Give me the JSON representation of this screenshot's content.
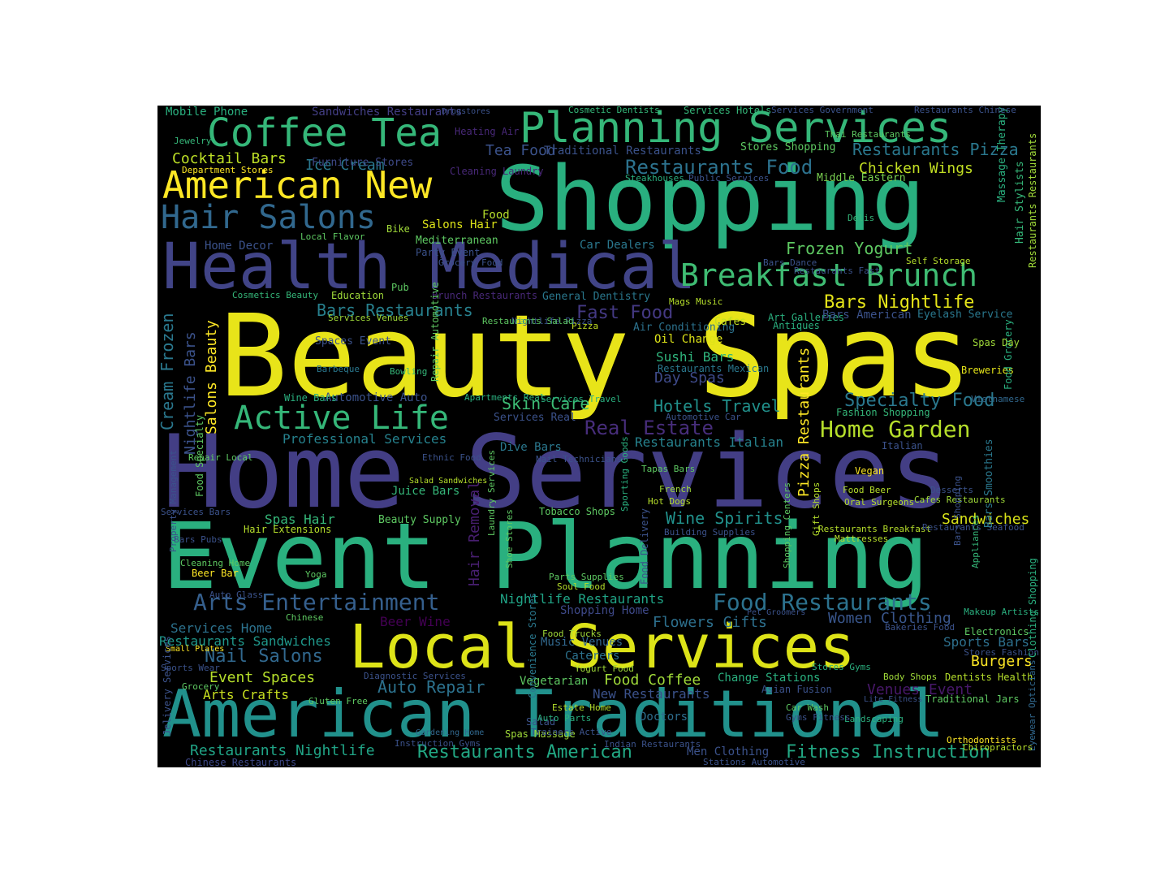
{
  "figure": {
    "background": "#ffffff",
    "panel_background": "#000000",
    "colormap": "viridis"
  },
  "words": [
    {
      "text": "Beauty Spas",
      "color": "#e8e419"
    },
    {
      "text": "Home Services",
      "color": "#433e85"
    },
    {
      "text": "Event Planning",
      "color": "#2ab07f"
    },
    {
      "text": "Shopping",
      "color": "#29af7f"
    },
    {
      "text": "American Traditional",
      "color": "#21918c"
    },
    {
      "text": "Local Services",
      "color": "#dde318"
    },
    {
      "text": "Health Medical",
      "color": "#414487"
    },
    {
      "text": "Planning Services",
      "color": "#35b779"
    },
    {
      "text": "Coffee Tea",
      "color": "#35b779"
    },
    {
      "text": "American New",
      "color": "#fde725"
    },
    {
      "text": "Breakfast Brunch",
      "color": "#3fbc73"
    },
    {
      "text": "Hair Salons",
      "color": "#31688e"
    },
    {
      "text": "Active Life",
      "color": "#35b779"
    },
    {
      "text": "Arts Entertainment",
      "color": "#355f8d"
    },
    {
      "text": "Food Restaurants",
      "color": "#2c728e"
    },
    {
      "text": "Home Garden",
      "color": "#b5de2b"
    },
    {
      "text": "Specialty Food",
      "color": "#2a788e"
    },
    {
      "text": "Real Estate",
      "color": "#472d7b"
    },
    {
      "text": "Restaurants Pizza",
      "color": "#2a788e"
    },
    {
      "text": "Restaurants Food",
      "color": "#2c728e"
    },
    {
      "text": "Fitness Instruction",
      "color": "#22a884"
    },
    {
      "text": "Restaurants American",
      "color": "#22a884"
    },
    {
      "text": "Restaurants Nightlife",
      "color": "#20a486"
    },
    {
      "text": "Bars Nightlife",
      "color": "#e5e419"
    },
    {
      "text": "Bars Restaurants",
      "color": "#27808e"
    },
    {
      "text": "Fast Food",
      "color": "#443983"
    },
    {
      "text": "Hotels Travel",
      "color": "#21918c"
    },
    {
      "text": "Auto Repair",
      "color": "#2c728e"
    },
    {
      "text": "Nail Salons",
      "color": "#31688e"
    },
    {
      "text": "Frozen Yogurt",
      "color": "#5ec962"
    },
    {
      "text": "Chicken Wings",
      "color": "#c2df23"
    },
    {
      "text": "Professional Services",
      "color": "#26828e"
    },
    {
      "text": "Wine Spirits",
      "color": "#21918c"
    },
    {
      "text": "Flowers Gifts",
      "color": "#2d708e"
    },
    {
      "text": "Women Clothing",
      "color": "#39568c"
    },
    {
      "text": "Sandwiches",
      "color": "#d8e219"
    },
    {
      "text": "Skin Care",
      "color": "#3dbc74"
    },
    {
      "text": "Day Spas",
      "color": "#3e4a89"
    },
    {
      "text": "Sushi Bars",
      "color": "#2fb47c"
    },
    {
      "text": "Event Spaces",
      "color": "#b5de2b"
    },
    {
      "text": "Burgers",
      "color": "#fde725"
    },
    {
      "text": "Sports Bars",
      "color": "#2d708e"
    },
    {
      "text": "Cocktail Bars",
      "color": "#bddf26"
    },
    {
      "text": "Ice Cream",
      "color": "#2a788e"
    },
    {
      "text": "Tea Food",
      "color": "#3b528b"
    },
    {
      "text": "Restaurants Italian",
      "color": "#26828e"
    },
    {
      "text": "Food Coffee",
      "color": "#a0da39"
    },
    {
      "text": "Salons Hair",
      "color": "#dde318"
    },
    {
      "text": "Home Decor",
      "color": "#3b528b"
    },
    {
      "text": "Car Dealers",
      "color": "#2a788e"
    },
    {
      "text": "Mobile Phone",
      "color": "#2ab07f"
    },
    {
      "text": "Sandwiches Restaurants",
      "color": "#433e85"
    },
    {
      "text": "Services Home",
      "color": "#2c728e"
    },
    {
      "text": "Restaurants Sandwiches",
      "color": "#1f988b"
    },
    {
      "text": "Arts Crafts",
      "color": "#c8e020"
    },
    {
      "text": "New Restaurants",
      "color": "#3b528b"
    },
    {
      "text": "Doctors",
      "color": "#2e6e8e"
    },
    {
      "text": "Beer Wine",
      "color": "#440154"
    },
    {
      "text": "Nightlife Restaurants",
      "color": "#20a486"
    },
    {
      "text": "Shopping Home",
      "color": "#3e4989"
    },
    {
      "text": "Music Venues",
      "color": "#31688e"
    },
    {
      "text": "Oil Change",
      "color": "#dde318"
    },
    {
      "text": "Venues Event",
      "color": "#48186a"
    },
    {
      "text": "Change Stations",
      "color": "#2ab07f"
    },
    {
      "text": "Men Clothing",
      "color": "#3b528b"
    },
    {
      "text": "Salons Beauty",
      "color": "#fde725"
    },
    {
      "text": "Nightlife Bars",
      "color": "#3b528b"
    },
    {
      "text": "Cream Frozen",
      "color": "#2a788e"
    },
    {
      "text": "Hair Removal",
      "color": "#481f70"
    },
    {
      "text": "Pizza Restaurants",
      "color": "#fde725"
    },
    {
      "text": "Restaurants Mexican",
      "color": "#2a788e"
    },
    {
      "text": "Breweries",
      "color": "#e5e419"
    },
    {
      "text": "Services Hotels",
      "color": "#35b779"
    },
    {
      "text": "Cosmetic Dentists",
      "color": "#35b779"
    },
    {
      "text": "Traditional Restaurants",
      "color": "#3b528b"
    },
    {
      "text": "Stores Shopping",
      "color": "#5ec962"
    },
    {
      "text": "Furniture Stores",
      "color": "#3e4a89"
    },
    {
      "text": "Dive Bars",
      "color": "#2a788e"
    },
    {
      "text": "Juice Bars",
      "color": "#35b779"
    },
    {
      "text": "Beauty Supply",
      "color": "#5ec962"
    },
    {
      "text": "Spas Hair",
      "color": "#35b779"
    },
    {
      "text": "Automotive Auto",
      "color": "#3b528b"
    },
    {
      "text": "Air Conditioning",
      "color": "#2c728e"
    },
    {
      "text": "Middle Eastern",
      "color": "#7ad151"
    },
    {
      "text": "Mediterranean",
      "color": "#5ec962"
    },
    {
      "text": "General Dentistry",
      "color": "#2a788e"
    },
    {
      "text": "Brunch Restaurants",
      "color": "#482878"
    },
    {
      "text": "Electronics",
      "color": "#5ec962"
    },
    {
      "text": "Massage Therapy",
      "color": "#2ab07f"
    },
    {
      "text": "Restaurants Restaurants",
      "color": "#a0da39"
    },
    {
      "text": "Education",
      "color": "#a0da39"
    },
    {
      "text": "Cafes",
      "color": "#c2df23"
    },
    {
      "text": "Food",
      "color": "#b5de2b"
    },
    {
      "text": "Chinese Restaurants",
      "color": "#3e4989"
    },
    {
      "text": "Caterers",
      "color": "#2c728e"
    },
    {
      "text": "Vegetarian",
      "color": "#5ec962"
    },
    {
      "text": "Cleaning Laundry",
      "color": "#482878"
    },
    {
      "text": "Heating Air",
      "color": "#482878"
    },
    {
      "text": "Restaurants Fast",
      "color": "#3b528b"
    },
    {
      "text": "Art Galleries",
      "color": "#2ab07f"
    },
    {
      "text": "Mags Music",
      "color": "#b5de2b"
    },
    {
      "text": "Eyelash Service",
      "color": "#2a788e"
    },
    {
      "text": "Bars American",
      "color": "#3b528b"
    },
    {
      "text": "Department Stores",
      "color": "#fde725"
    },
    {
      "text": "Jewelry",
      "color": "#35b779"
    },
    {
      "text": "Barbeque",
      "color": "#2a788e"
    },
    {
      "text": "Wine Bars",
      "color": "#2ab07f"
    },
    {
      "text": "Services Government",
      "color": "#3b528b"
    },
    {
      "text": "Restaurants Chinese",
      "color": "#3b528b"
    },
    {
      "text": "Drugstores",
      "color": "#3b528b"
    },
    {
      "text": "Fashion Shopping",
      "color": "#35b779"
    },
    {
      "text": "Vegan",
      "color": "#fde725"
    },
    {
      "text": "Food Beer",
      "color": "#b5de2b"
    },
    {
      "text": "Desserts",
      "color": "#3b528b"
    },
    {
      "text": "Cafes Restaurants",
      "color": "#a0da39"
    },
    {
      "text": "Restaurants Breakfast",
      "color": "#b5de2b"
    },
    {
      "text": "Dentists Health",
      "color": "#b5de2b"
    },
    {
      "text": "Stores Fashion",
      "color": "#3b528b"
    },
    {
      "text": "Asian Fusion",
      "color": "#3b528b"
    },
    {
      "text": "Lite Fitness",
      "color": "#3b528b"
    },
    {
      "text": "Traditional Jars",
      "color": "#5ec962"
    },
    {
      "text": "Body Shops",
      "color": "#a0da39"
    },
    {
      "text": "Vietnamese",
      "color": "#31688e"
    },
    {
      "text": "Beer Bar",
      "color": "#fde725"
    },
    {
      "text": "Chinese",
      "color": "#5ec962"
    },
    {
      "text": "Food Trucks",
      "color": "#a0da39"
    },
    {
      "text": "Shoe Stores",
      "color": "#5ec962"
    },
    {
      "text": "Sporting Goods",
      "color": "#2ab07f"
    },
    {
      "text": "Food Delivery",
      "color": "#3b528b"
    },
    {
      "text": "Gift Shops",
      "color": "#b5de2b"
    },
    {
      "text": "Pizza",
      "color": "#c2df23"
    },
    {
      "text": "Spas Massage",
      "color": "#a0da39"
    },
    {
      "text": "Salad",
      "color": "#3b528b"
    },
    {
      "text": "Auto Parts",
      "color": "#2ab07f"
    },
    {
      "text": "Hot Dogs",
      "color": "#b5de2b"
    },
    {
      "text": "French",
      "color": "#a0da39"
    },
    {
      "text": "Mattresses",
      "color": "#b5de2b"
    },
    {
      "text": "Appliances",
      "color": "#35b779"
    },
    {
      "text": "Gardening Home",
      "color": "#31688e"
    },
    {
      "text": "Pub",
      "color": "#5ec962"
    },
    {
      "text": "Party Event",
      "color": "#3b528b"
    },
    {
      "text": "Antiques",
      "color": "#2ab07f"
    },
    {
      "text": "Bike",
      "color": "#a0da39"
    },
    {
      "text": "Hair Stylists",
      "color": "#35b779"
    },
    {
      "text": "Tobacco Shops",
      "color": "#5ec962"
    },
    {
      "text": "Grocery Food",
      "color": "#3b528b"
    },
    {
      "text": "Local Flavor",
      "color": "#5ec962"
    },
    {
      "text": "Bowling",
      "color": "#35b779"
    },
    {
      "text": "Cosmetics Beauty",
      "color": "#35b779"
    },
    {
      "text": "Steakhouses",
      "color": "#2ab07f"
    },
    {
      "text": "Public Services",
      "color": "#3b528b"
    },
    {
      "text": "Self Storage",
      "color": "#b5de2b"
    },
    {
      "text": "Delis",
      "color": "#35b779"
    },
    {
      "text": "Italian",
      "color": "#3b528b"
    },
    {
      "text": "Food Specialty",
      "color": "#5ec962"
    },
    {
      "text": "Clothing Shopping",
      "color": "#2ab07f"
    },
    {
      "text": "Repair Local",
      "color": "#5ec962"
    },
    {
      "text": "Diagnostic Services",
      "color": "#3b528b"
    },
    {
      "text": "Estate Home",
      "color": "#b5de2b"
    },
    {
      "text": "Yogurt Food",
      "color": "#a0da39"
    },
    {
      "text": "Shopping Centers",
      "color": "#5ec962"
    },
    {
      "text": "Landscaping",
      "color": "#2ab07f"
    },
    {
      "text": "Bakeries Food",
      "color": "#3b528b"
    },
    {
      "text": "Makeup Artists",
      "color": "#2ab07f"
    },
    {
      "text": "Eyewear Opticians",
      "color": "#31688e"
    },
    {
      "text": "Property Management",
      "color": "#3b528b"
    },
    {
      "text": "Nightlife Pizza",
      "color": "#3b528b"
    },
    {
      "text": "Services Real",
      "color": "#3b528b"
    },
    {
      "text": "Services Venues",
      "color": "#a0da39"
    },
    {
      "text": "Spaces Event",
      "color": "#3b528b"
    },
    {
      "text": "Restaurants Salad",
      "color": "#5ec962"
    },
    {
      "text": "Apartments Real",
      "color": "#2ab07f"
    },
    {
      "text": "Repair Automotive",
      "color": "#5ec962"
    },
    {
      "text": "Convenience Stores",
      "color": "#2a788e"
    },
    {
      "text": "Laundry Services",
      "color": "#5ec962"
    },
    {
      "text": "Parts Supplies",
      "color": "#5ec962"
    },
    {
      "text": "Soul Food",
      "color": "#b5de2b"
    },
    {
      "text": "Building Supplies",
      "color": "#3b528b"
    },
    {
      "text": "Automotive Car",
      "color": "#3b528b"
    },
    {
      "text": "Restaurants Seafood",
      "color": "#3b528b"
    },
    {
      "text": "Ethnic Food",
      "color": "#3b528b"
    },
    {
      "text": "Salad Sandwiches",
      "color": "#b5de2b"
    },
    {
      "text": "Tapas Bars",
      "color": "#5ec962"
    },
    {
      "text": "Services Bars",
      "color": "#3b528b"
    },
    {
      "text": "Small Plates",
      "color": "#fde725"
    },
    {
      "text": "Sports Wear",
      "color": "#3b528b"
    },
    {
      "text": "Grocery",
      "color": "#5ec962"
    },
    {
      "text": "Jelivery Services",
      "color": "#3b528b"
    },
    {
      "text": "Auto Glass",
      "color": "#3b528b"
    },
    {
      "text": "Cleaning Home",
      "color": "#5ec962"
    },
    {
      "text": "Bars Pubs",
      "color": "#3b528b"
    },
    {
      "text": "Yoga",
      "color": "#5ec962"
    },
    {
      "text": "Pet Groomers",
      "color": "#3b528b"
    },
    {
      "text": "Hair Extensions",
      "color": "#b5de2b"
    },
    {
      "text": "Stores Gyms",
      "color": "#2ab07f"
    },
    {
      "text": "Gyms Fitness",
      "color": "#3b528b"
    },
    {
      "text": "Bars Shopping",
      "color": "#3b528b"
    },
    {
      "text": "Bars Smoothies",
      "color": "#2a788e"
    },
    {
      "text": "Food Grocery",
      "color": "#2ab07f"
    },
    {
      "text": "Spas Day",
      "color": "#a0da39"
    },
    {
      "text": "Instruction Gyms",
      "color": "#3b528b"
    },
    {
      "text": "Oral Surgeons",
      "color": "#b5de2b"
    },
    {
      "text": "Gluten Free",
      "color": "#5ec962"
    },
    {
      "text": "Bars Dance",
      "color": "#3b528b"
    },
    {
      "text": "Thai Restaurants",
      "color": "#5ec962"
    },
    {
      "text": "Nail Technicians",
      "color": "#3b528b"
    },
    {
      "text": "Chiropractors",
      "color": "#b5de2b"
    },
    {
      "text": "Orthodontists",
      "color": "#fde725"
    },
    {
      "text": "Indian Restaurants",
      "color": "#3b528b"
    },
    {
      "text": "Services Travel",
      "color": "#2ab07f"
    },
    {
      "text": "Trainers Active",
      "color": "#3b528b"
    },
    {
      "text": "Car Wash",
      "color": "#5ec962"
    },
    {
      "text": "Stations Automotive",
      "color": "#3b528b"
    }
  ]
}
